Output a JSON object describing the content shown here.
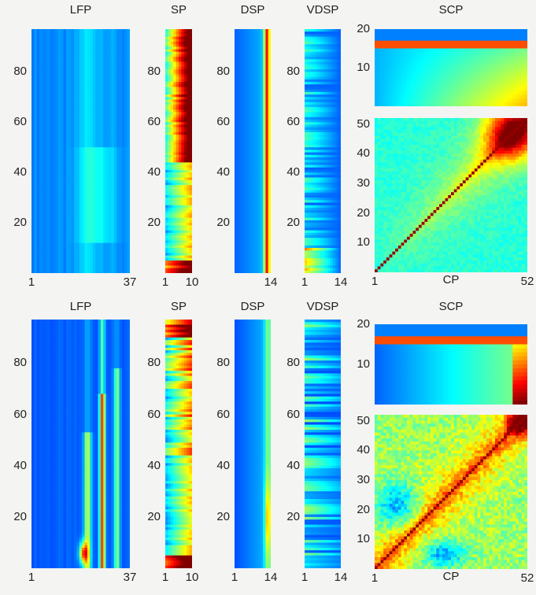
{
  "colors": {
    "colormap": "jet",
    "stops": [
      "#00008f",
      "#0000ff",
      "#0080ff",
      "#00ffff",
      "#80ff80",
      "#ffff00",
      "#ff8000",
      "#ff0000",
      "#800000"
    ],
    "background": "#f4f4f2",
    "text": "#222222"
  },
  "chart_data": [
    {
      "id": "top-lfp",
      "type": "heatmap",
      "title": "LFP",
      "xlabel": "",
      "x_ticks": [
        "1",
        "37"
      ],
      "y_ticks": [
        "20",
        "40",
        "60",
        "80"
      ]
    },
    {
      "id": "top-sp",
      "type": "heatmap",
      "title": "SP",
      "xlabel": "",
      "x_ticks": [
        "1",
        "10"
      ],
      "y_ticks": [
        "20",
        "40",
        "60",
        "80"
      ]
    },
    {
      "id": "top-dsp",
      "type": "heatmap",
      "title": "DSP",
      "xlabel": "",
      "x_ticks": [
        "14"
      ],
      "y_ticks": [
        "20",
        "40",
        "60",
        "80"
      ]
    },
    {
      "id": "top-vdsp",
      "type": "heatmap",
      "title": "VDSP",
      "xlabel": "",
      "x_ticks": [
        "1",
        "14"
      ],
      "y_ticks": [
        "20",
        "40",
        "60",
        "80"
      ]
    },
    {
      "id": "top-scp",
      "type": "heatmap",
      "title": "SCP",
      "xlabel": "",
      "x_ticks": [],
      "y_ticks": [
        "10",
        "20"
      ]
    },
    {
      "id": "top-cp",
      "type": "heatmap",
      "title": "",
      "xlabel": "CP",
      "x_ticks": [
        "1",
        "52"
      ],
      "y_ticks": [
        "10",
        "20",
        "30",
        "40",
        "50"
      ]
    },
    {
      "id": "bot-lfp",
      "type": "heatmap",
      "title": "LFP",
      "xlabel": "",
      "x_ticks": [
        "1",
        "37"
      ],
      "y_ticks": [
        "20",
        "40",
        "60",
        "80"
      ]
    },
    {
      "id": "bot-sp",
      "type": "heatmap",
      "title": "SP",
      "xlabel": "",
      "x_ticks": [
        "1",
        "10"
      ],
      "y_ticks": [
        "20",
        "40",
        "60",
        "80"
      ]
    },
    {
      "id": "bot-dsp",
      "type": "heatmap",
      "title": "DSP",
      "xlabel": "",
      "x_ticks": [
        "1",
        "14"
      ],
      "y_ticks": [
        "20",
        "40",
        "60",
        "80"
      ]
    },
    {
      "id": "bot-vdsp",
      "type": "heatmap",
      "title": "VDSP",
      "xlabel": "",
      "x_ticks": [
        "1",
        "14"
      ],
      "y_ticks": [
        "20",
        "40",
        "60",
        "80"
      ]
    },
    {
      "id": "bot-scp",
      "type": "heatmap",
      "title": "SCP",
      "xlabel": "",
      "x_ticks": [],
      "y_ticks": [
        "10",
        "20"
      ]
    },
    {
      "id": "bot-cp",
      "type": "heatmap",
      "title": "",
      "xlabel": "CP",
      "x_ticks": [
        "1",
        "52"
      ],
      "y_ticks": [
        "10",
        "20",
        "30",
        "40",
        "50"
      ]
    }
  ]
}
